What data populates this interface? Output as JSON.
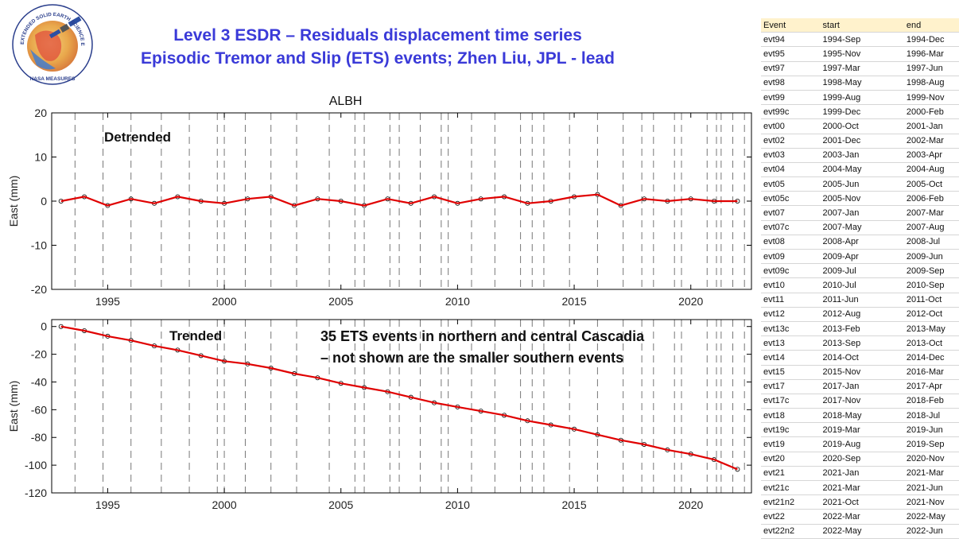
{
  "title": {
    "line1": "Level 3 ESDR – Residuals displacement time series",
    "line2": "Episodic Tremor and Slip (ETS) events; Zhen Liu, JPL - lead"
  },
  "logo": {
    "ring_text": "EXTENDED SOLID EARTH SCIENCE ESDR SYSTEM",
    "bottom_text": "NASA MEASURES"
  },
  "table": {
    "headers": [
      "Event",
      "start",
      "end"
    ],
    "rows": [
      [
        "evt94",
        "1994-Sep",
        "1994-Dec"
      ],
      [
        "evt95",
        "1995-Nov",
        "1996-Mar"
      ],
      [
        "evt97",
        "1997-Mar",
        "1997-Jun"
      ],
      [
        "evt98",
        "1998-May",
        "1998-Aug"
      ],
      [
        "evt99",
        "1999-Aug",
        "1999-Nov"
      ],
      [
        "evt99c",
        "1999-Dec",
        "2000-Feb"
      ],
      [
        "evt00",
        "2000-Oct",
        "2001-Jan"
      ],
      [
        "evt02",
        "2001-Dec",
        "2002-Mar"
      ],
      [
        "evt03",
        "2003-Jan",
        "2003-Apr"
      ],
      [
        "evt04",
        "2004-May",
        "2004-Aug"
      ],
      [
        "evt05",
        "2005-Jun",
        "2005-Oct"
      ],
      [
        "evt05c",
        "2005-Nov",
        "2006-Feb"
      ],
      [
        "evt07",
        "2007-Jan",
        "2007-Mar"
      ],
      [
        "evt07c",
        "2007-May",
        "2007-Aug"
      ],
      [
        "evt08",
        "2008-Apr",
        "2008-Jul"
      ],
      [
        "evt09",
        "2009-Apr",
        "2009-Jun"
      ],
      [
        "evt09c",
        "2009-Jul",
        "2009-Sep"
      ],
      [
        "evt10",
        "2010-Jul",
        "2010-Sep"
      ],
      [
        "evt11",
        "2011-Jun",
        "2011-Oct"
      ],
      [
        "evt12",
        "2012-Aug",
        "2012-Oct"
      ],
      [
        "evt13c",
        "2013-Feb",
        "2013-May"
      ],
      [
        "evt13",
        "2013-Sep",
        "2013-Oct"
      ],
      [
        "evt14",
        "2014-Oct",
        "2014-Dec"
      ],
      [
        "evt15",
        "2015-Nov",
        "2016-Mar"
      ],
      [
        "evt17",
        "2017-Jan",
        "2017-Apr"
      ],
      [
        "evt17c",
        "2017-Nov",
        "2018-Feb"
      ],
      [
        "evt18",
        "2018-May",
        "2018-Jul"
      ],
      [
        "evt19c",
        "2019-Mar",
        "2019-Jun"
      ],
      [
        "evt19",
        "2019-Aug",
        "2019-Sep"
      ],
      [
        "evt20",
        "2020-Sep",
        "2020-Nov"
      ],
      [
        "evt21",
        "2021-Jan",
        "2021-Mar"
      ],
      [
        "evt21c",
        "2021-Mar",
        "2021-Jun"
      ],
      [
        "evt21n2",
        "2021-Oct",
        "2021-Nov"
      ],
      [
        "evt22",
        "2022-Mar",
        "2022-May"
      ],
      [
        "evt22n2",
        "2022-May",
        "2022-Jun"
      ]
    ]
  },
  "chart_data": [
    {
      "type": "scatter",
      "title": "ALBH",
      "label": "Detrended",
      "xlabel": "",
      "ylabel": "East (mm)",
      "xlim": [
        1992.6,
        2022.6
      ],
      "ylim": [
        -20,
        20
      ],
      "xticks": [
        1995,
        2000,
        2005,
        2010,
        2015,
        2020
      ],
      "yticks": [
        -20,
        -10,
        0,
        10,
        20
      ],
      "grid": false,
      "event_lines": [
        1993.6,
        1994.8,
        1996.0,
        1997.3,
        1998.5,
        1999.7,
        2000.0,
        2000.9,
        2002.0,
        2003.1,
        2004.5,
        2005.6,
        2006.0,
        2007.1,
        2007.5,
        2008.4,
        2009.3,
        2009.6,
        2010.6,
        2011.6,
        2012.7,
        2013.2,
        2013.7,
        2014.8,
        2016.0,
        2017.1,
        2017.9,
        2018.4,
        2019.3,
        2019.6,
        2020.7,
        2021.1,
        2021.3,
        2021.8,
        2022.3
      ],
      "series": [
        {
          "color": "#000000",
          "marker": "open-circle",
          "x": [
            1993.0,
            1994.0,
            1995.0,
            1996.0,
            1997.0,
            1998.0,
            1999.0,
            2000.0,
            2001.0,
            2002.0,
            2003.0,
            2004.0,
            2005.0,
            2006.0,
            2007.0,
            2008.0,
            2009.0,
            2010.0,
            2011.0,
            2012.0,
            2013.0,
            2014.0,
            2015.0,
            2016.0,
            2017.0,
            2018.0,
            2019.0,
            2020.0,
            2021.0,
            2022.0
          ],
          "y": [
            0,
            1,
            -1,
            0.5,
            -0.5,
            1,
            0,
            -0.5,
            0.5,
            1,
            -1,
            0.5,
            0,
            -1,
            0.5,
            -0.5,
            1,
            -0.5,
            0.5,
            1,
            -0.5,
            0,
            1,
            1.5,
            -1,
            0.5,
            0,
            0.5,
            0,
            0
          ]
        },
        {
          "color": "#e00000",
          "marker": "line",
          "x": [
            1993.0,
            1994.0,
            1995.0,
            1996.0,
            1997.0,
            1998.0,
            1999.0,
            2000.0,
            2001.0,
            2002.0,
            2003.0,
            2004.0,
            2005.0,
            2006.0,
            2007.0,
            2008.0,
            2009.0,
            2010.0,
            2011.0,
            2012.0,
            2013.0,
            2014.0,
            2015.0,
            2016.0,
            2017.0,
            2018.0,
            2019.0,
            2020.0,
            2021.0,
            2022.0
          ],
          "y": [
            0,
            1,
            -1,
            0.5,
            -0.5,
            1,
            0,
            -0.5,
            0.5,
            1,
            -1,
            0.5,
            0,
            -1,
            0.5,
            -0.5,
            1,
            -0.5,
            0.5,
            1,
            -0.5,
            0,
            1,
            1.5,
            -1,
            0.5,
            0,
            0.5,
            0,
            0
          ]
        }
      ]
    },
    {
      "type": "scatter",
      "title": "",
      "label": "Trended",
      "annotation": [
        "35 ETS events in northern and central Cascadia",
        "– not shown are the smaller southern events"
      ],
      "xlabel": "",
      "ylabel": "East (mm)",
      "xlim": [
        1992.6,
        2022.6
      ],
      "ylim": [
        -120,
        5
      ],
      "xticks": [
        1995,
        2000,
        2005,
        2010,
        2015,
        2020
      ],
      "yticks": [
        -120,
        -100,
        -80,
        -60,
        -40,
        -20,
        0
      ],
      "grid": false,
      "event_lines": [
        1993.6,
        1994.8,
        1996.0,
        1997.3,
        1998.5,
        1999.7,
        2000.0,
        2000.9,
        2002.0,
        2003.1,
        2004.5,
        2005.6,
        2006.0,
        2007.1,
        2007.5,
        2008.4,
        2009.3,
        2009.6,
        2010.6,
        2011.6,
        2012.7,
        2013.2,
        2013.7,
        2014.8,
        2016.0,
        2017.1,
        2017.9,
        2018.4,
        2019.3,
        2019.6,
        2020.7,
        2021.1,
        2021.3,
        2021.8,
        2022.3
      ],
      "series": [
        {
          "color": "#000000",
          "marker": "open-circle",
          "x": [
            1993.0,
            1994.0,
            1995.0,
            1996.0,
            1997.0,
            1998.0,
            1999.0,
            2000.0,
            2001.0,
            2002.0,
            2003.0,
            2004.0,
            2005.0,
            2006.0,
            2007.0,
            2008.0,
            2009.0,
            2010.0,
            2011.0,
            2012.0,
            2013.0,
            2014.0,
            2015.0,
            2016.0,
            2017.0,
            2018.0,
            2019.0,
            2020.0,
            2021.0,
            2022.0
          ],
          "y": [
            0,
            -3,
            -7,
            -10,
            -14,
            -17,
            -21,
            -25,
            -27,
            -30,
            -34,
            -37,
            -41,
            -44,
            -47,
            -51,
            -55,
            -58,
            -61,
            -64,
            -68,
            -71,
            -74,
            -78,
            -82,
            -85,
            -89,
            -92,
            -96,
            -103
          ]
        },
        {
          "color": "#e00000",
          "marker": "line",
          "x": [
            1993.0,
            1994.0,
            1995.0,
            1996.0,
            1997.0,
            1998.0,
            1999.0,
            2000.0,
            2001.0,
            2002.0,
            2003.0,
            2004.0,
            2005.0,
            2006.0,
            2007.0,
            2008.0,
            2009.0,
            2010.0,
            2011.0,
            2012.0,
            2013.0,
            2014.0,
            2015.0,
            2016.0,
            2017.0,
            2018.0,
            2019.0,
            2020.0,
            2021.0,
            2022.0
          ],
          "y": [
            0,
            -3,
            -7,
            -10,
            -14,
            -17,
            -21,
            -25,
            -27,
            -30,
            -34,
            -37,
            -41,
            -44,
            -47,
            -51,
            -55,
            -58,
            -61,
            -64,
            -68,
            -71,
            -74,
            -78,
            -82,
            -85,
            -89,
            -92,
            -96,
            -103
          ]
        }
      ]
    }
  ]
}
